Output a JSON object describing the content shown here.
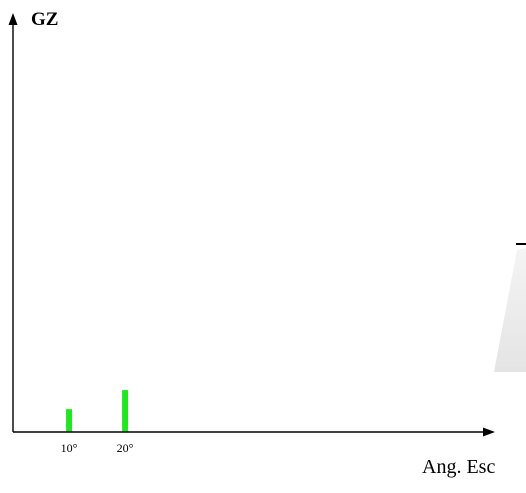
{
  "chart_data": {
    "type": "bar",
    "categories": [
      "10°",
      "20°"
    ],
    "x": [
      10,
      20
    ],
    "values": [
      0.6,
      1.1
    ],
    "xlabel": "Ang. Esc",
    "ylabel": "GZ",
    "xlim": [
      0,
      86
    ],
    "ylim": [
      0,
      10.7
    ],
    "grid": false,
    "colors": {
      "bar": "#22e622",
      "axis": "#000000"
    }
  }
}
